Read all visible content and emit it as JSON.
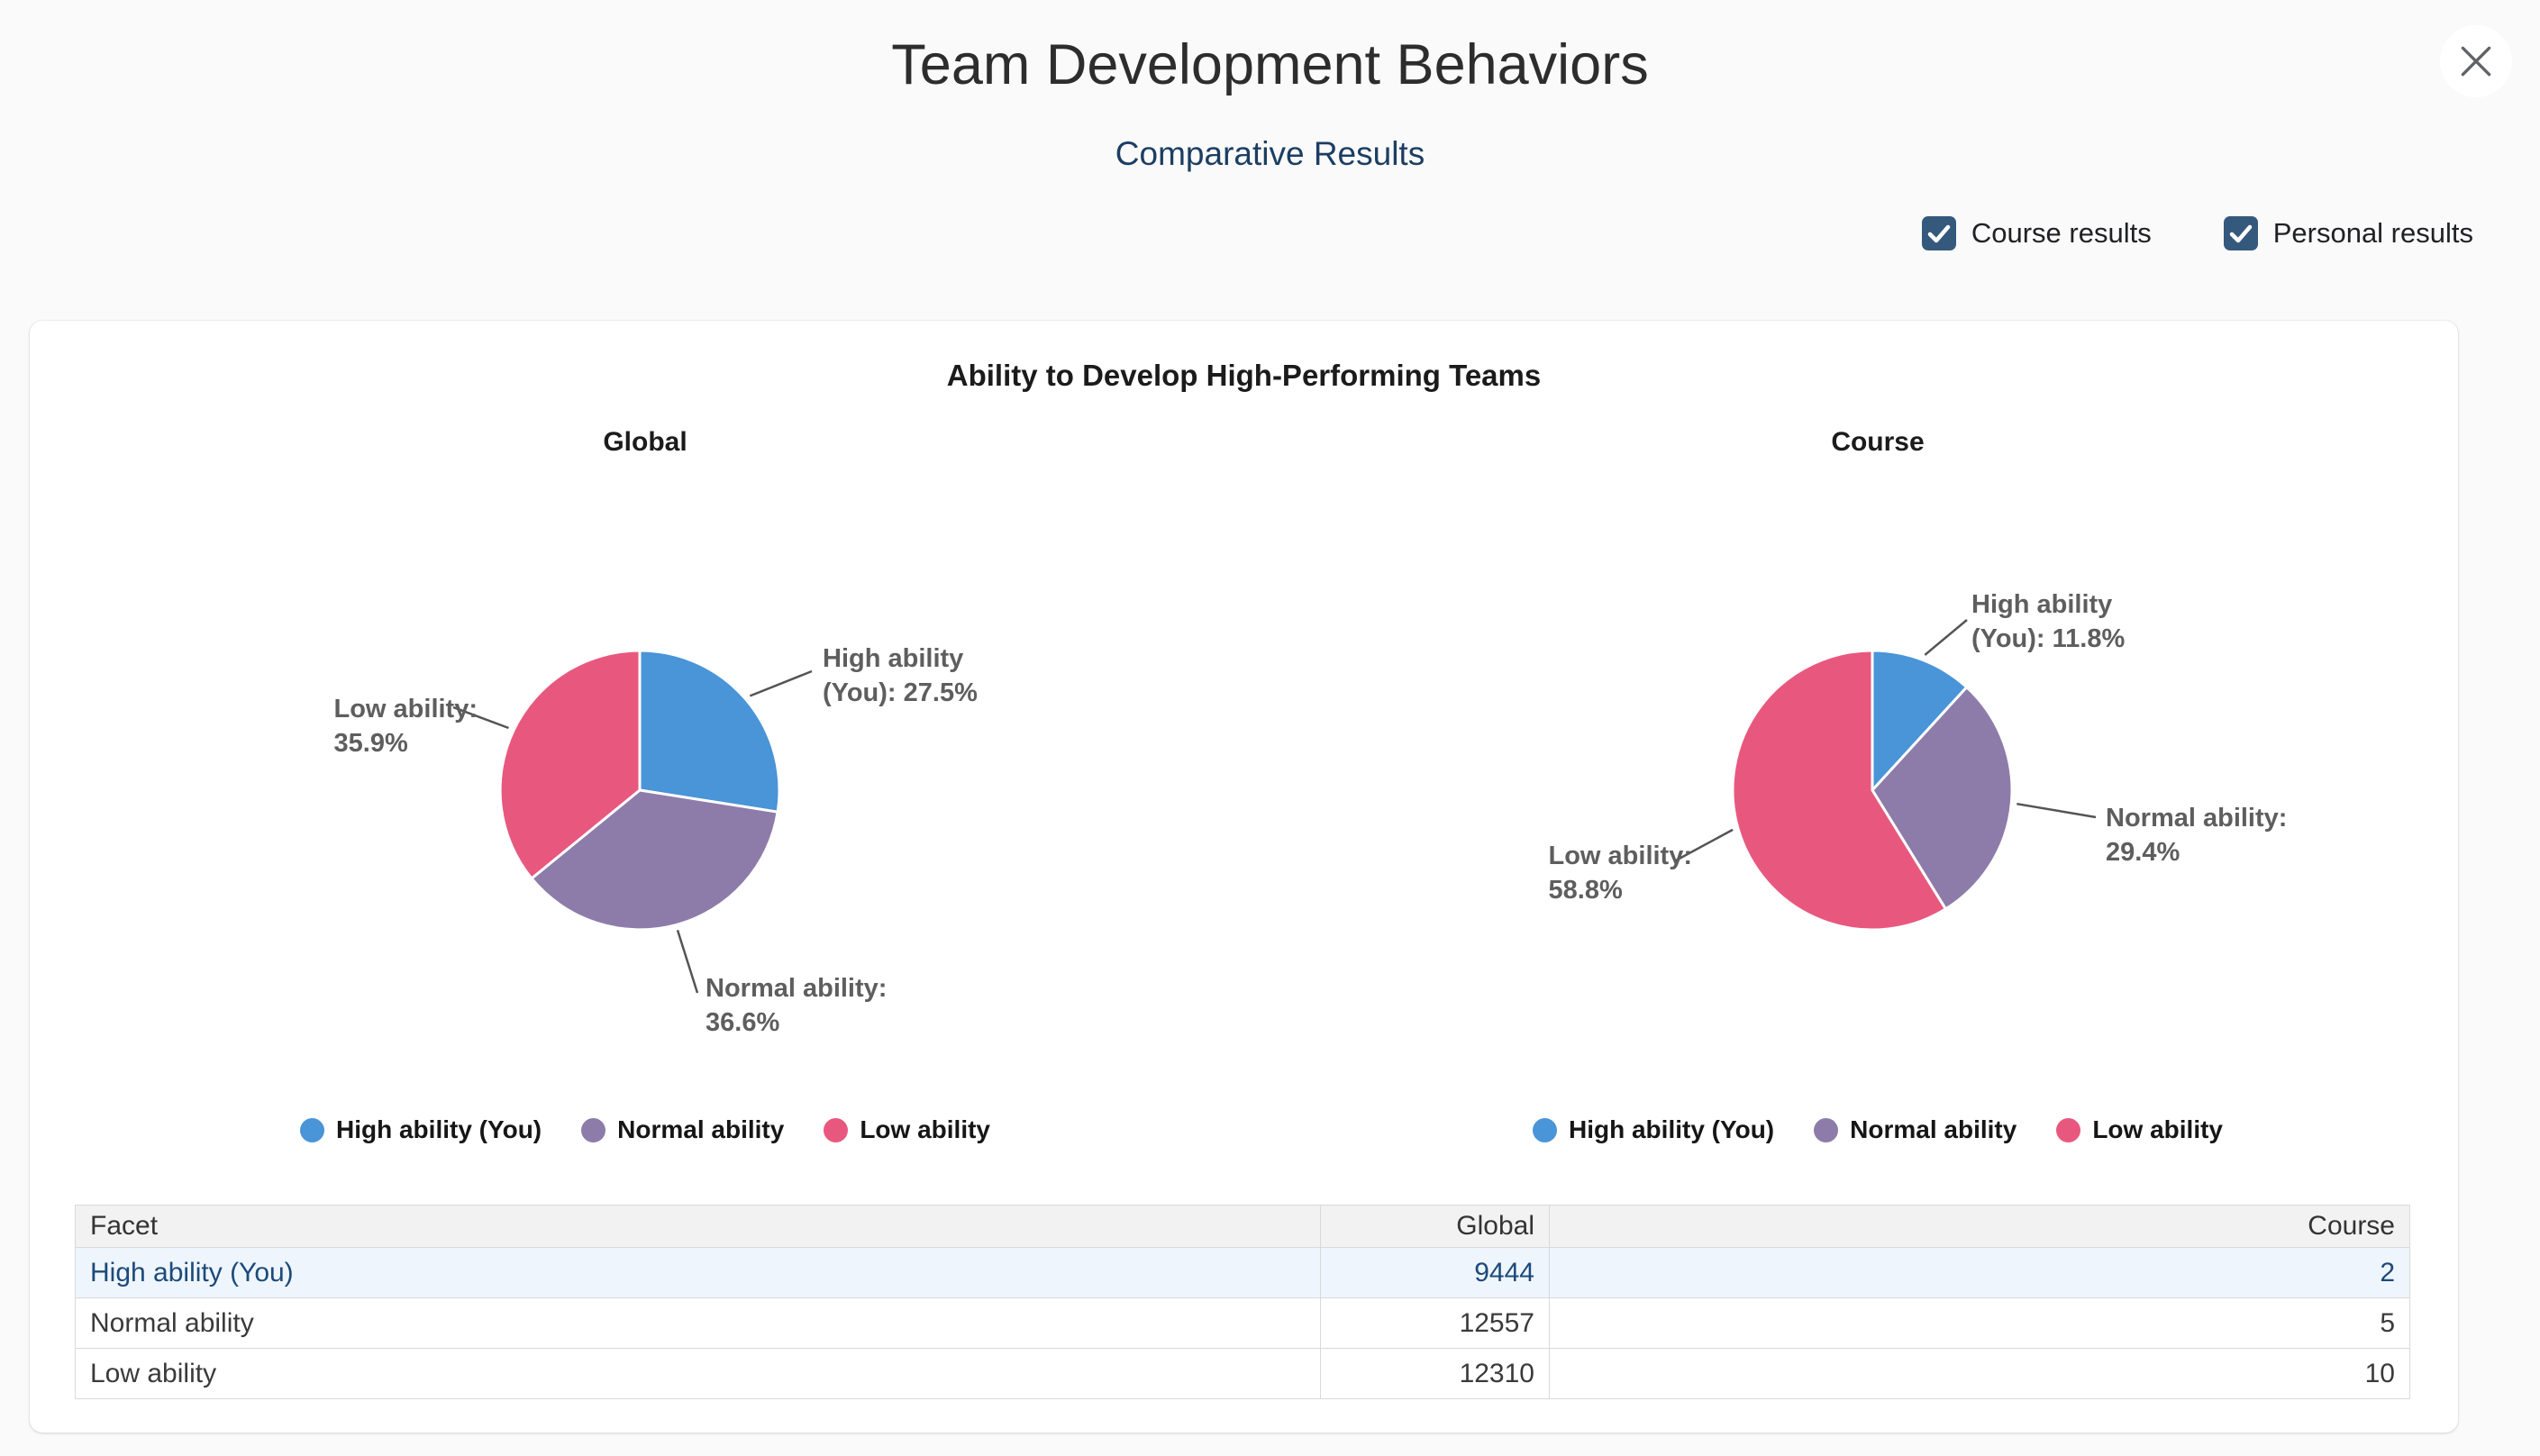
{
  "header": {
    "title": "Team Development Behaviors",
    "subtitle": "Comparative Results",
    "filters": [
      {
        "label": "Course results",
        "checked": true
      },
      {
        "label": "Personal results",
        "checked": true
      }
    ]
  },
  "card": {
    "title": "Ability to Develop High-Performing Teams"
  },
  "chart_data": [
    {
      "type": "pie",
      "title": "Global",
      "categories": [
        "High ability (You)",
        "Normal ability",
        "Low ability"
      ],
      "values": [
        9444,
        12557,
        12310
      ],
      "values_pct": [
        27.5,
        36.6,
        35.9
      ],
      "colors": [
        "#4a94d8",
        "#8d7ca9",
        "#e8587e"
      ],
      "callouts": [
        [
          "High ability",
          "(You): 27.5%"
        ],
        [
          "Normal ability:",
          "36.6%"
        ],
        [
          "Low ability:",
          "35.9%"
        ]
      ],
      "legend_position": "bottom"
    },
    {
      "type": "pie",
      "title": "Course",
      "categories": [
        "High ability (You)",
        "Normal ability",
        "Low ability"
      ],
      "values": [
        2,
        5,
        10
      ],
      "values_pct": [
        11.8,
        29.4,
        58.8
      ],
      "colors": [
        "#4a94d8",
        "#8d7ca9",
        "#e8587e"
      ],
      "callouts": [
        [
          "High ability",
          "(You): 11.8%"
        ],
        [
          "Normal ability:",
          "29.4%"
        ],
        [
          "Low ability:",
          "58.8%"
        ]
      ],
      "legend_position": "bottom"
    }
  ],
  "table": {
    "columns": [
      "Facet",
      "Global",
      "Course"
    ],
    "rows": [
      {
        "facet": "High ability (You)",
        "global": "9444",
        "course": "2",
        "highlighted": true
      },
      {
        "facet": "Normal ability",
        "global": "12557",
        "course": "5",
        "highlighted": false
      },
      {
        "facet": "Low ability",
        "global": "12310",
        "course": "10",
        "highlighted": false
      }
    ]
  },
  "colors": {
    "accent_navy": "#35597d",
    "subtitle_navy": "#1c3e63",
    "pie_blue": "#4a94d8",
    "pie_purple": "#8d7ca9",
    "pie_pink": "#e8587e",
    "callout_text": "#5e5e5e",
    "leader_line": "#545454",
    "row_highlight_bg": "#eff5fc",
    "row_highlight_text": "#1b4a7a",
    "page_bg": "#fafafa"
  }
}
